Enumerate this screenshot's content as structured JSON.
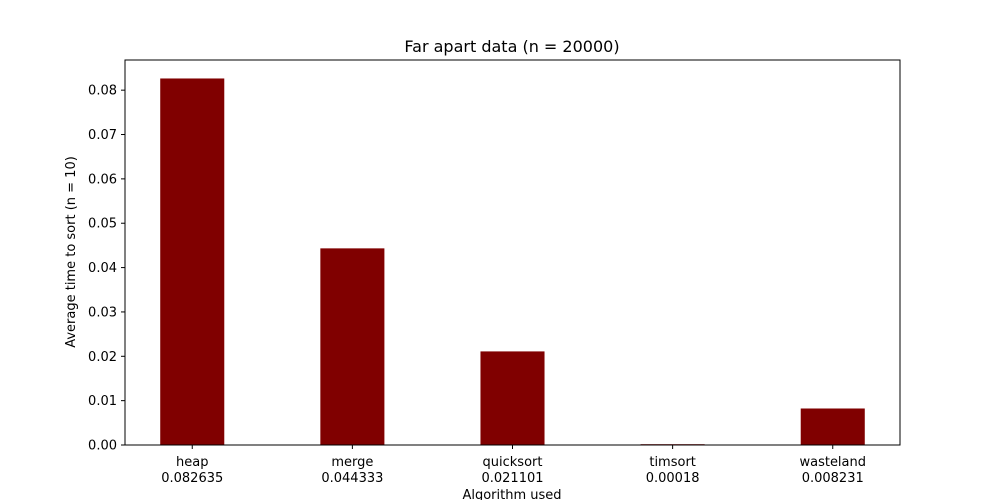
{
  "chart_data": {
    "type": "bar",
    "title": "Far apart data (n = 20000)",
    "xlabel": "Algorithm used",
    "ylabel": "Average time to sort (n = 10)",
    "categories": [
      "heap\n0.082635",
      "merge\n0.044333",
      "quicksort\n0.021101",
      "timsort\n0.00018",
      "wasteland\n0.008231"
    ],
    "values": [
      0.082635,
      0.044333,
      0.021101,
      0.00018,
      0.008231
    ],
    "ylim": [
      0,
      0.0868
    ],
    "yticks": [
      "0.00",
      "0.01",
      "0.02",
      "0.03",
      "0.04",
      "0.05",
      "0.06",
      "0.07",
      "0.08"
    ],
    "bar_color": "#800000",
    "grid": false,
    "legend": "none"
  }
}
